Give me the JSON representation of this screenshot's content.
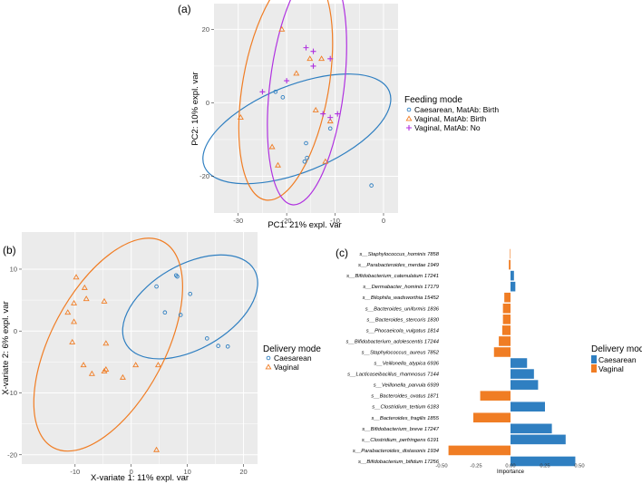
{
  "colors": {
    "caesarean": "#2f7fc1",
    "vaginal": "#f07d24",
    "vaginal_no": "#b032e0",
    "panel_bg": "#ebebeb",
    "grid": "#ffffff",
    "axis_text": "#4d4d4d"
  },
  "chart_data": [
    {
      "id": "a",
      "panel_label": "(a)",
      "type": "scatter",
      "xlabel": "PC1: 21% expl. var",
      "ylabel": "PC2: 10% expl. var",
      "xlim": [
        -35,
        3
      ],
      "ylim": [
        -30,
        27
      ],
      "xticks": [
        -30,
        -20,
        -10,
        0
      ],
      "xtick_labels": [
        "-30",
        "-20",
        "-10",
        "0"
      ],
      "yticks": [
        -20,
        0,
        20
      ],
      "ytick_labels": [
        "-20",
        "0",
        "20"
      ],
      "legend_title": "Feeding mode",
      "legend_position": "right",
      "series": [
        {
          "name": "Caesarean, MatAb: Birth",
          "marker": "circle",
          "color_key": "caesarean",
          "points": [
            [
              -22.3,
              3
            ],
            [
              -20.8,
              1.5
            ],
            [
              -16,
              -11
            ],
            [
              -16.3,
              -16
            ],
            [
              -15.8,
              -15
            ],
            [
              -11,
              -7
            ],
            [
              -2.5,
              -22.5
            ]
          ],
          "ellipse": {
            "cx": -17.9,
            "cy": -7.1,
            "rx": 20.6,
            "ry": 11.8,
            "angle": -22
          }
        },
        {
          "name": "Vaginal, MatAb: Birth",
          "marker": "triangle",
          "color_key": "vaginal",
          "points": [
            [
              -21,
              20
            ],
            [
              -18,
              8
            ],
            [
              -15.2,
              12
            ],
            [
              -12.8,
              12
            ],
            [
              -23,
              -12
            ],
            [
              -29.5,
              -4
            ],
            [
              -21.8,
              -17
            ],
            [
              -14,
              -2
            ],
            [
              -11,
              -5
            ],
            [
              -12,
              -16
            ]
          ],
          "ellipse": {
            "cx": -20.2,
            "cy": 4.7,
            "rx": 24,
            "ry": 11.7,
            "angle": -80
          }
        },
        {
          "name": "Vaginal, MatAb: No",
          "marker": "plus",
          "color_key": "vaginal_no",
          "points": [
            [
              -16,
              15
            ],
            [
              -14.5,
              10
            ],
            [
              -14.5,
              14
            ],
            [
              -11,
              12
            ],
            [
              -20,
              6
            ],
            [
              -25,
              3
            ],
            [
              -12.5,
              -3
            ],
            [
              -11,
              -4
            ],
            [
              -9.5,
              -3
            ]
          ],
          "ellipse": {
            "cx": -15.8,
            "cy": 4.7,
            "rx": 24.8,
            "ry": 10.1,
            "angle": -83
          }
        }
      ]
    },
    {
      "id": "b",
      "panel_label": "(b)",
      "type": "scatter",
      "xlabel": "X-variate 1: 11% expl. var",
      "ylabel": "X-variate 2: 6% expl. var",
      "xlim": [
        -19.5,
        22.5
      ],
      "ylim": [
        -21.5,
        16
      ],
      "xticks": [
        -10,
        0,
        10,
        20
      ],
      "xtick_labels": [
        "-10",
        "0",
        "10",
        "20"
      ],
      "yticks": [
        -20,
        -10,
        0,
        10
      ],
      "ytick_labels": [
        "-20",
        "-10",
        "0",
        "10"
      ],
      "legend_title": "Delivery mode",
      "legend_position": "right",
      "series": [
        {
          "name": "Caesarean",
          "marker": "circle",
          "color_key": "caesarean",
          "points": [
            [
              4.5,
              7.2
            ],
            [
              8,
              9
            ],
            [
              8.2,
              8.8
            ],
            [
              10.5,
              6
            ],
            [
              6,
              3
            ],
            [
              8.8,
              2.6
            ],
            [
              13.5,
              -1.2
            ],
            [
              15.5,
              -2.4
            ],
            [
              17.2,
              -2.5
            ]
          ],
          "ellipse": {
            "cx": 10.5,
            "cy": 3.9,
            "rx": 13.2,
            "ry": 6.8,
            "angle": -30
          }
        },
        {
          "name": "Vaginal",
          "marker": "triangle",
          "color_key": "vaginal",
          "points": [
            [
              -9.8,
              8.7
            ],
            [
              -8.3,
              7
            ],
            [
              -8,
              5.2
            ],
            [
              -10.2,
              4.5
            ],
            [
              -4.8,
              4.8
            ],
            [
              -11.3,
              3
            ],
            [
              -10.2,
              1.5
            ],
            [
              -10.5,
              -1.8
            ],
            [
              -4.5,
              -2
            ],
            [
              -8.5,
              -5.5
            ],
            [
              -4.8,
              -6.5
            ],
            [
              -4.5,
              -6.2
            ],
            [
              -7,
              -6.9
            ],
            [
              -1.5,
              -7.5
            ],
            [
              0.8,
              -5.5
            ],
            [
              4.8,
              -5.5
            ],
            [
              4.5,
              -19.2
            ]
          ],
          "ellipse": {
            "cx": -4.1,
            "cy": -2.2,
            "rx": 20.8,
            "ry": 9.2,
            "angle": -62
          }
        }
      ]
    },
    {
      "id": "c",
      "panel_label": "(c)",
      "type": "bar",
      "orientation": "horizontal",
      "xlabel": "Importance",
      "xlim": [
        -0.5,
        0.5
      ],
      "xticks": [
        -0.5,
        -0.25,
        0,
        0.25,
        0.5
      ],
      "xtick_labels": [
        "-0.50",
        "-0.25",
        "0.00",
        "0.25",
        "0.50"
      ],
      "legend_title": "Delivery mode",
      "legend_position": "right",
      "legend": [
        {
          "label": "Caesarean",
          "color_key": "caesarean"
        },
        {
          "label": "Vaginal",
          "color_key": "vaginal"
        }
      ],
      "categories": [
        "s__Staphylococcus_hominis 7858",
        "s__Parabacteroides_merdae 1949",
        "s__Bifidobacterium_catenulatum 17241",
        "s__Dermabacter_hominis 17179",
        "s__Bilophila_wadsworthia 15452",
        "s__Bacteroides_uniformis 1836",
        "s__Bacteroides_stercoris 1830",
        "s__Phocaeicola_vulgatus 1814",
        "s__Bifidobacterium_adolescentis 17244",
        "s__Staphylococcus_aureus 7852",
        "s__Veillonella_atypica 6936",
        "s__Lacticaseibacillus_rhamnosus 7144",
        "s__Veillonella_parvula 6939",
        "s__Bacteroides_ovatus 1871",
        "s__Clostridium_tertium 6183",
        "s__Bacteroides_fragilis 1855",
        "s__Bifidobacterium_breve 17247",
        "s__Clostridium_perfringens 6191",
        "s__Parabacteroides_distasonis 1934",
        "s__Bifidobacterium_bifidum 17256"
      ],
      "values": [
        -0.004,
        -0.012,
        0.025,
        0.035,
        -0.045,
        -0.055,
        -0.055,
        -0.06,
        -0.085,
        -0.12,
        0.12,
        0.17,
        0.2,
        -0.22,
        0.25,
        -0.27,
        0.3,
        0.4,
        -0.45,
        0.47
      ],
      "groups": [
        "vaginal",
        "vaginal",
        "caesarean",
        "caesarean",
        "vaginal",
        "vaginal",
        "vaginal",
        "vaginal",
        "vaginal",
        "vaginal",
        "caesarean",
        "caesarean",
        "caesarean",
        "vaginal",
        "caesarean",
        "vaginal",
        "caesarean",
        "caesarean",
        "vaginal",
        "caesarean"
      ]
    }
  ]
}
